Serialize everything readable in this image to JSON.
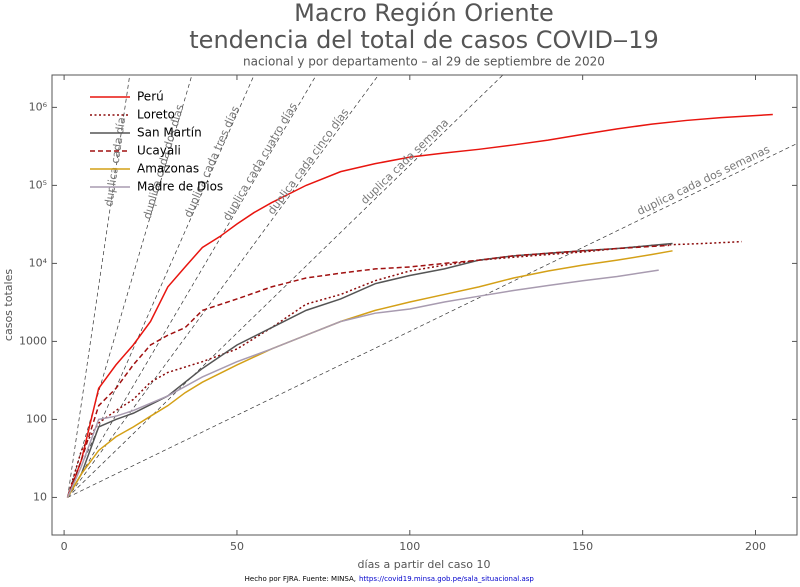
{
  "chart_data": {
    "type": "line",
    "title": "Macro Región Oriente",
    "title_line2": "tendencia del total de casos COVID‒19",
    "subtitle": "nacional y por departamento – al 29 de septiembre de 2020",
    "x_label": "días a partir del caso 10",
    "y_label": "casos totales",
    "footer": "Hecho por FJRA. Fuente: MINSA,",
    "footer_link": "https://covid19.minsa.gob.pe/sala_situacional.asp",
    "log_y": true,
    "legend": "upper left",
    "xlim": [
      -3.5,
      212
    ],
    "ylim": [
      3.3,
      2600000
    ],
    "xticks": [
      0,
      50,
      100,
      150,
      200
    ],
    "yticks": [
      10,
      100,
      1000,
      {
        "value": 10000,
        "label": "10⁴"
      },
      {
        "value": 100000,
        "label": "10⁵"
      },
      {
        "value": 1000000,
        "label": "10⁶"
      }
    ],
    "reference_lines": [
      {
        "label": "duplica cada día",
        "doubling_days": 1
      },
      {
        "label": "duplica cada dos días",
        "doubling_days": 2
      },
      {
        "label": "duplica cada tres días",
        "doubling_days": 3
      },
      {
        "label": "duplica cada cuatro días",
        "doubling_days": 4
      },
      {
        "label": "duplica cada cinco días",
        "doubling_days": 5
      },
      {
        "label": "duplica cada semana",
        "doubling_days": 7
      },
      {
        "label": "duplica cada dos semanas",
        "doubling_days": 14
      }
    ],
    "series": [
      {
        "name": "Perú",
        "color": "#e8150f",
        "linestyle": "solid",
        "x": [
          1,
          5,
          10,
          15,
          20,
          25,
          30,
          35,
          40,
          45,
          50,
          55,
          60,
          70,
          80,
          90,
          100,
          110,
          120,
          130,
          140,
          150,
          160,
          170,
          180,
          190,
          205
        ],
        "values": [
          10,
          30,
          250,
          500,
          900,
          1800,
          5000,
          9000,
          16000,
          22000,
          32000,
          45000,
          60000,
          100000,
          150000,
          190000,
          230000,
          260000,
          290000,
          330000,
          380000,
          450000,
          530000,
          610000,
          680000,
          740000,
          810000
        ]
      },
      {
        "name": "Loreto",
        "color": "#8b0a0a",
        "linestyle": "dotted",
        "x": [
          1,
          5,
          10,
          15,
          20,
          25,
          30,
          40,
          50,
          60,
          70,
          80,
          90,
          100,
          110,
          120,
          130,
          140,
          150,
          160,
          170,
          185,
          196
        ],
        "values": [
          10,
          40,
          90,
          130,
          180,
          300,
          400,
          550,
          800,
          1500,
          3000,
          4000,
          6000,
          8000,
          9500,
          11000,
          12000,
          13000,
          14000,
          15500,
          17000,
          18000,
          19000
        ]
      },
      {
        "name": "San Martín",
        "color": "#555555",
        "linestyle": "solid",
        "x": [
          1,
          5,
          10,
          15,
          20,
          30,
          40,
          50,
          60,
          70,
          80,
          90,
          100,
          110,
          120,
          130,
          140,
          150,
          160,
          170,
          176
        ],
        "values": [
          10,
          20,
          80,
          100,
          120,
          200,
          450,
          900,
          1500,
          2500,
          3500,
          5500,
          7000,
          8500,
          11000,
          12500,
          13500,
          14500,
          15500,
          17000,
          18000
        ]
      },
      {
        "name": "Ucayali",
        "color": "#a01010",
        "linestyle": "dashed",
        "x": [
          1,
          5,
          10,
          15,
          20,
          25,
          30,
          35,
          40,
          50,
          60,
          70,
          80,
          90,
          100,
          110,
          120,
          130,
          140,
          150,
          160,
          170,
          175
        ],
        "values": [
          10,
          30,
          150,
          250,
          500,
          900,
          1200,
          1500,
          2500,
          3500,
          5000,
          6500,
          7500,
          8500,
          9000,
          10000,
          11000,
          12500,
          13500,
          14500,
          15500,
          16500,
          17000
        ]
      },
      {
        "name": "Amazonas",
        "color": "#d4a017",
        "linestyle": "solid",
        "x": [
          1,
          5,
          10,
          15,
          20,
          25,
          30,
          35,
          40,
          50,
          60,
          70,
          80,
          90,
          100,
          110,
          120,
          130,
          140,
          150,
          160,
          170,
          176
        ],
        "values": [
          10,
          20,
          40,
          60,
          80,
          110,
          150,
          220,
          300,
          500,
          800,
          1200,
          1800,
          2500,
          3200,
          4000,
          5000,
          6500,
          8000,
          9500,
          11000,
          13000,
          14500
        ]
      },
      {
        "name": "Madre de Dios",
        "color": "#a89bb0",
        "linestyle": "solid",
        "x": [
          1,
          5,
          10,
          15,
          20,
          30,
          40,
          50,
          60,
          70,
          80,
          90,
          100,
          110,
          120,
          130,
          140,
          150,
          160,
          172
        ],
        "values": [
          10,
          25,
          100,
          110,
          130,
          200,
          350,
          550,
          800,
          1200,
          1800,
          2300,
          2600,
          3200,
          3800,
          4500,
          5200,
          6000,
          6800,
          8200
        ]
      }
    ]
  }
}
